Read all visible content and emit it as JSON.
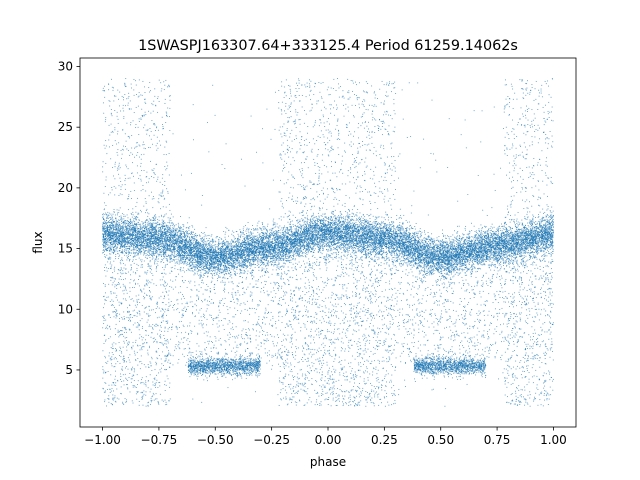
{
  "chart_data": {
    "type": "scatter",
    "title": "1SWASPJ163307.64+333125.4 Period 61259.14062s",
    "xlabel": "phase",
    "ylabel": "flux",
    "xlim": [
      -1.1,
      1.1
    ],
    "ylim": [
      0.3,
      30.7
    ],
    "x_ticks": [
      -1.0,
      -0.75,
      -0.5,
      -0.25,
      0.0,
      0.25,
      0.5,
      0.75,
      1.0
    ],
    "x_tick_labels": [
      "−1.00",
      "−0.75",
      "−0.50",
      "−0.25",
      "0.00",
      "0.25",
      "0.50",
      "0.75",
      "1.00"
    ],
    "y_ticks": [
      5,
      10,
      15,
      20,
      25,
      30
    ],
    "y_tick_labels": [
      "5",
      "10",
      "15",
      "20",
      "25",
      "30"
    ],
    "grid": false,
    "legend": "none",
    "point_color": "#1f77b4",
    "series": [
      {
        "description_of_shape": "phase-folded light curve, mirrored over phase −1 to 1",
        "baseline_points": [
          {
            "x": -1.0,
            "y": 16.2
          },
          {
            "x": -0.75,
            "y": 15.8
          },
          {
            "x": -0.5,
            "y": 14.3
          },
          {
            "x": -0.25,
            "y": 15.2
          },
          {
            "x": 0.0,
            "y": 16.3
          },
          {
            "x": 0.25,
            "y": 15.8
          },
          {
            "x": 0.5,
            "y": 14.3
          },
          {
            "x": 0.75,
            "y": 15.2
          },
          {
            "x": 1.0,
            "y": 16.2
          }
        ],
        "eclipse_floor": [
          {
            "x": -0.62,
            "y": 5.3
          },
          {
            "x": -0.3,
            "y": 5.3
          },
          {
            "x": 0.38,
            "y": 5.3
          },
          {
            "x": 0.7,
            "y": 5.3
          }
        ],
        "outlier_range": [
          2.0,
          29.0
        ]
      }
    ]
  }
}
